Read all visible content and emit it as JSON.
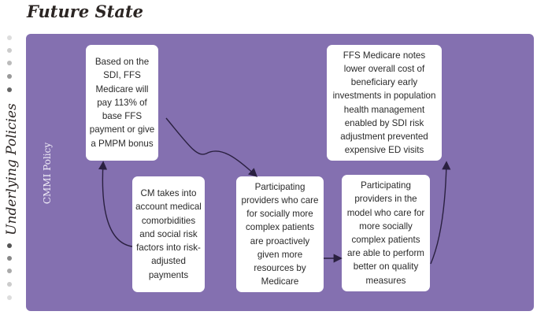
{
  "title": "Future State",
  "side_label": "Underlying Policies",
  "panel_label": "CMMI Policy",
  "colors": {
    "panel": "#8470b0",
    "box": "#ffffff",
    "arrow": "#2a2040"
  },
  "boxes": [
    {
      "id": "sdi-payment",
      "text": "Based on the SDI, FFS Medicare will pay 113% of base FFS payment or give a PMPM bonus"
    },
    {
      "id": "cm-takes",
      "text": "CM takes into account medical comorbidities and social risk factors into risk-adjusted payments"
    },
    {
      "id": "providers-resources",
      "text": "Participating providers who care for socially more complex patients are proactively given more resources by Medicare"
    },
    {
      "id": "providers-perform",
      "text": "Participating providers in the model who care for more socially complex patients are able to perform better on quality measures"
    },
    {
      "id": "lower-cost",
      "text": "FFS Medicare notes lower overall cost of beneficiary early investments in population health management enabled by SDI risk adjustment prevented expensive ED visits"
    }
  ]
}
